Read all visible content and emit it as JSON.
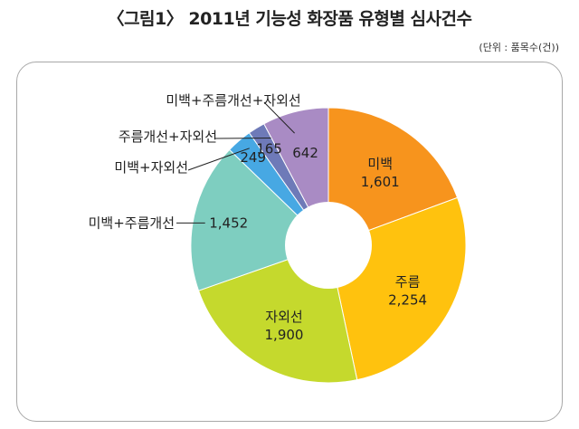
{
  "title": "〈그림1〉 2011년 기능성 화장품 유형별 심사건수",
  "unit_note": "(단위 : 품목수(건))",
  "chart_data": {
    "type": "pie",
    "title": "〈그림1〉 2011년 기능성 화장품 유형별 심사건수",
    "unit": "(단위 : 품목수(건))",
    "categories": [
      "미백",
      "주름",
      "자외선",
      "미백+주름개선",
      "미백+자외선",
      "주름개선+자외선",
      "미백+주름개선+자외선"
    ],
    "values": [
      1601,
      2254,
      1900,
      1452,
      249,
      165,
      642
    ],
    "value_labels": [
      "1,601",
      "2,254",
      "1,900",
      "1,452",
      "249",
      "165",
      "642"
    ],
    "colors": [
      "#F7941D",
      "#FFC20E",
      "#C5D92D",
      "#7ECEC0",
      "#47A8E3",
      "#6E7AB8",
      "#A98BC4"
    ],
    "donut": true,
    "legend": "none"
  }
}
